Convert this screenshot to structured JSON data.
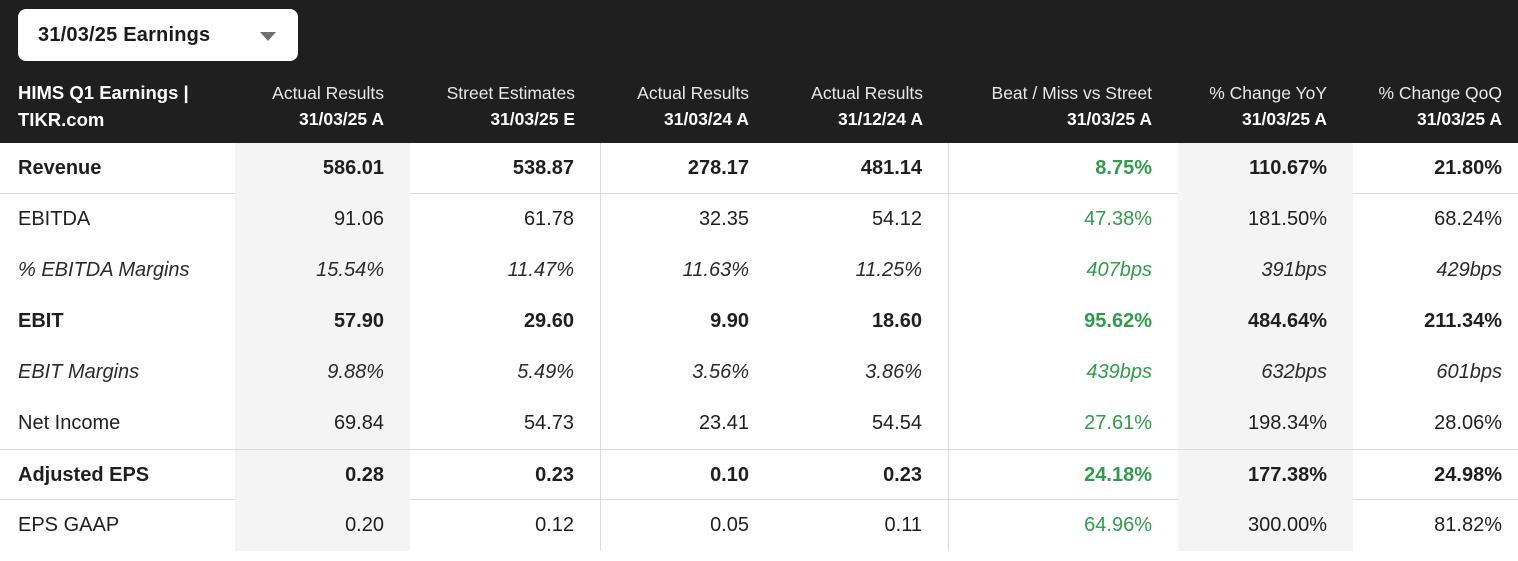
{
  "dropdown": {
    "label": "31/03/25 Earnings"
  },
  "table": {
    "header": {
      "title_line1": "HIMS Q1 Earnings |",
      "title_line2": "TIKR.com",
      "columns": [
        {
          "line1": "Actual Results",
          "line2": "31/03/25 A"
        },
        {
          "line1": "Street Estimates",
          "line2": "31/03/25 E"
        },
        {
          "line1": "Actual Results",
          "line2": "31/03/24 A"
        },
        {
          "line1": "Actual Results",
          "line2": "31/12/24 A"
        },
        {
          "line1": "Beat / Miss vs Street",
          "line2": "31/03/25 A"
        },
        {
          "line1": "% Change YoY",
          "line2": "31/03/25 A"
        },
        {
          "line1": "% Change QoQ",
          "line2": "31/03/25 A"
        }
      ]
    },
    "rows": [
      {
        "label": "Revenue",
        "style": "bold",
        "values": [
          "586.01",
          "538.87",
          "278.17",
          "481.14",
          "8.75%",
          "110.67%",
          "21.80%"
        ]
      },
      {
        "label": "EBITDA",
        "style": "regular",
        "values": [
          "91.06",
          "61.78",
          "32.35",
          "54.12",
          "47.38%",
          "181.50%",
          "68.24%"
        ]
      },
      {
        "label": "% EBITDA Margins",
        "style": "italic",
        "values": [
          "15.54%",
          "11.47%",
          "11.63%",
          "11.25%",
          "407bps",
          "391bps",
          "429bps"
        ]
      },
      {
        "label": "EBIT",
        "style": "bold",
        "values": [
          "57.90",
          "29.60",
          "9.90",
          "18.60",
          "95.62%",
          "484.64%",
          "211.34%"
        ]
      },
      {
        "label": "EBIT Margins",
        "style": "italic",
        "values": [
          "9.88%",
          "5.49%",
          "3.56%",
          "3.86%",
          "439bps",
          "632bps",
          "601bps"
        ]
      },
      {
        "label": "Net Income",
        "style": "regular",
        "values": [
          "69.84",
          "54.73",
          "23.41",
          "54.54",
          "27.61%",
          "198.34%",
          "28.06%"
        ]
      },
      {
        "label": "Adjusted EPS",
        "style": "bold",
        "values": [
          "0.28",
          "0.23",
          "0.10",
          "0.23",
          "24.18%",
          "177.38%",
          "24.98%"
        ]
      },
      {
        "label": "EPS GAAP",
        "style": "regular",
        "values": [
          "0.20",
          "0.12",
          "0.05",
          "0.11",
          "64.96%",
          "300.00%",
          "81.82%"
        ]
      }
    ]
  },
  "colors": {
    "header_bg": "#1f1f1f",
    "band_bg": "#f4f4f4",
    "accent_green": "#2f9c49"
  },
  "icons": {
    "dropdown_chevron": "chevron-down-icon"
  }
}
